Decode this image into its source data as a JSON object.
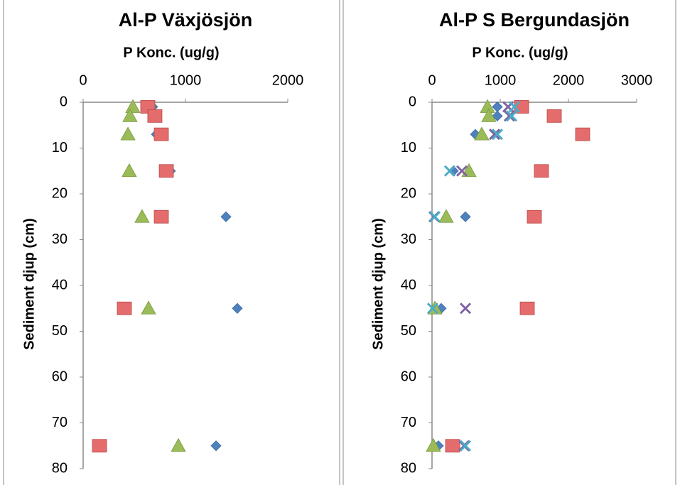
{
  "chart_data": [
    {
      "type": "scatter",
      "title": "Al-P Växjösjön",
      "x_label": "P Konc. (ug/g)",
      "y_label": "Sediment djup (cm)",
      "xlim": [
        0,
        2000
      ],
      "xticks": [
        0,
        1000,
        2000
      ],
      "ylim": [
        0,
        80
      ],
      "yticks": [
        0,
        10,
        20,
        30,
        40,
        50,
        60,
        70,
        80
      ],
      "y_inverted": true,
      "x_axis_top": true,
      "series": [
        {
          "color": "#4f81bd",
          "marker": "diamond",
          "x": [
            680,
            700,
            715,
            854,
            1396,
            1507,
            1299
          ],
          "values": [
            1,
            3,
            7,
            15,
            25,
            45,
            75
          ]
        },
        {
          "color": "#e46c6c",
          "marker": "square",
          "x": [
            632,
            701,
            764,
            813,
            764,
            403,
            160
          ],
          "values": [
            1,
            3,
            7,
            15,
            25,
            45,
            75
          ]
        },
        {
          "color": "#9bbb59",
          "marker": "triangle",
          "x": [
            486,
            458,
            438,
            451,
            576,
            639,
            931
          ],
          "values": [
            1,
            3,
            7,
            15,
            25,
            45,
            75
          ]
        }
      ]
    },
    {
      "type": "scatter",
      "title": "Al-P S Bergundasjön",
      "x_label": "P Konc. (ug/g)",
      "y_label": "Sediment djup (cm)",
      "xlim": [
        0,
        3000
      ],
      "xticks": [
        0,
        1000,
        2000,
        3000
      ],
      "ylim": [
        0,
        80
      ],
      "yticks": [
        0,
        10,
        20,
        30,
        40,
        50,
        60,
        70,
        80
      ],
      "y_inverted": true,
      "x_axis_top": true,
      "series": [
        {
          "color": "#4f81bd",
          "marker": "diamond",
          "x": [
            958,
            958,
            635,
            313,
            490,
            135,
            94
          ],
          "values": [
            1,
            3,
            7,
            15,
            25,
            45,
            75
          ]
        },
        {
          "color": "#e46c6c",
          "marker": "square",
          "x": [
            1313,
            1792,
            2208,
            1604,
            1500,
            1396,
            302
          ],
          "values": [
            1,
            3,
            7,
            15,
            25,
            45,
            75
          ]
        },
        {
          "color": "#9bbb59",
          "marker": "triangle",
          "x": [
            813,
            833,
            729,
            542,
            208,
            42,
            20
          ],
          "values": [
            1,
            3,
            7,
            15,
            25,
            45,
            75
          ]
        },
        {
          "color": "#8064a2",
          "marker": "x",
          "x": [
            1115,
            1135,
            917,
            438,
            31,
            490,
            469
          ],
          "values": [
            1,
            3,
            7,
            15,
            25,
            45,
            75
          ]
        },
        {
          "color": "#4bacc6",
          "marker": "x",
          "x": [
            1208,
            1167,
            958,
            260,
            42,
            10,
            490
          ],
          "values": [
            1,
            3,
            7,
            15,
            25,
            45,
            75
          ]
        }
      ]
    }
  ]
}
